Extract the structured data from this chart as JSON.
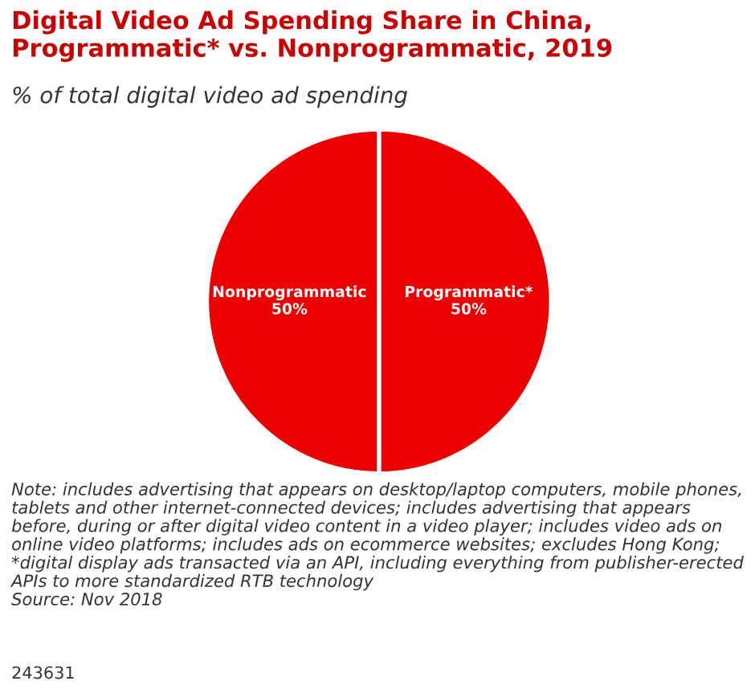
{
  "chart_data": {
    "type": "pie",
    "title": "Digital Video Ad Spending Share in China,\nProgrammatic* vs. Nonprogrammatic, 2019",
    "subtitle": "% of total digital video ad spending",
    "categories": [
      "Nonprogrammatic",
      "Programmatic*"
    ],
    "values": [
      50,
      50
    ],
    "value_labels": [
      "50%",
      "50%"
    ],
    "colors": [
      "#ee0000",
      "#ee0000"
    ],
    "annotations": [
      "Note: includes advertising that appears on desktop/laptop computers, mobile phones, tablets and other internet-connected devices; includes advertising that appears before, during or after digital video content in a video player; includes video ads on online video platforms; includes ads on ecommerce websites; excludes Hong Kong; *digital display ads transacted via an API, including everything from publisher-erected APIs to more standardized RTB technology\nSource: Nov 2018",
      "243631"
    ]
  }
}
